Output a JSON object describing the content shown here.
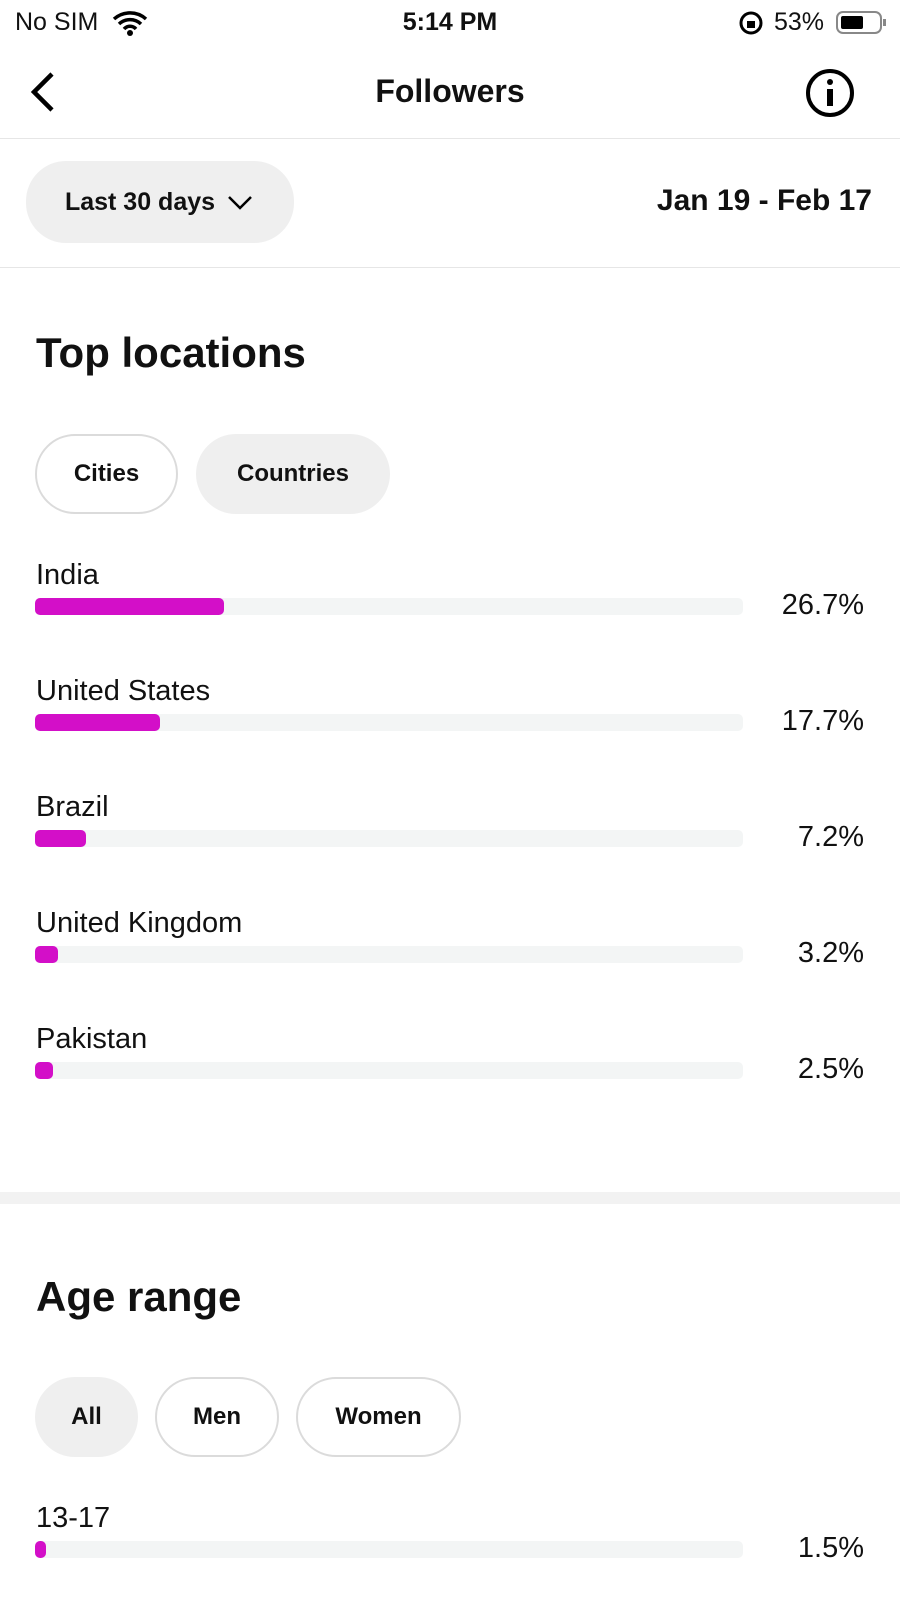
{
  "status_bar": {
    "carrier": "No SIM",
    "time": "5:14 PM",
    "battery": "53%"
  },
  "header": {
    "title": "Followers"
  },
  "filter": {
    "range": "Last 30 days",
    "dates": "Jan 19 - Feb 17"
  },
  "top_locations": {
    "title": "Top locations",
    "tabs": [
      "Cities",
      "Countries"
    ],
    "xlim": [
      0,
      100
    ],
    "items": [
      {
        "name": "India",
        "value": 26.7,
        "value_label": "26.7%"
      },
      {
        "name": "United States",
        "value": 17.7,
        "value_label": "17.7%"
      },
      {
        "name": "Brazil",
        "value": 7.2,
        "value_label": "7.2%"
      },
      {
        "name": "United Kingdom",
        "value": 3.2,
        "value_label": "3.2%"
      },
      {
        "name": "Pakistan",
        "value": 2.5,
        "value_label": "2.5%"
      }
    ]
  },
  "age_range": {
    "title": "Age range",
    "tabs": [
      "All",
      "Men",
      "Women"
    ],
    "xlim": [
      0,
      100
    ],
    "items": [
      {
        "name": "13-17",
        "value": 1.5,
        "value_label": "1.5%"
      }
    ]
  }
}
